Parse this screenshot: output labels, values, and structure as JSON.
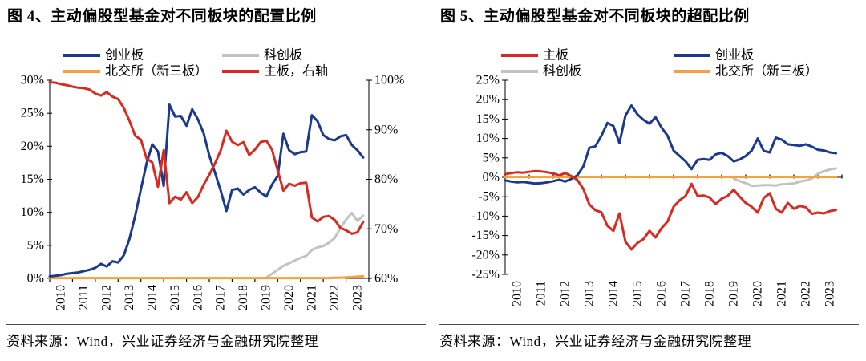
{
  "page": {
    "background": "#ffffff",
    "rule_color": "#4a4a4a"
  },
  "colors": {
    "main_board_red": "#da2a20",
    "chinext_blue": "#1b3a8e",
    "star_gray": "#c2c2c2",
    "bse_orange": "#f9a03a"
  },
  "panels": [
    {
      "title": "图 4、主动偏股型基金对不同板块的配置比例",
      "source": "资料来源：Wind，兴业证券经济与金融研究院整理"
    },
    {
      "title": "图 5、主动偏股型基金对不同板块的超配比例",
      "source": "资料来源：Wind，兴业证券经济与金融研究院整理"
    }
  ],
  "chart_data": [
    {
      "type": "line",
      "title": "主动偏股型基金对不同板块的配置比例",
      "x_tick_labels": [
        "2010",
        "2011",
        "2012",
        "2013",
        "2014",
        "2015",
        "2016",
        "2017",
        "2018",
        "2019",
        "2020",
        "2021",
        "2022",
        "2023"
      ],
      "points_per_year": 4,
      "left_axis": {
        "min": 0,
        "max": 30,
        "step": 5,
        "tick_labels": [
          "0%",
          "5%",
          "10%",
          "15%",
          "20%",
          "25%",
          "30%"
        ]
      },
      "right_axis": {
        "min": 60,
        "max": 100,
        "step": 10,
        "tick_labels": [
          "60%",
          "70%",
          "80%",
          "90%",
          "100%"
        ]
      },
      "legend_position": "top-two-columns",
      "grid": false,
      "series": [
        {
          "name": "创业板",
          "color": "#1b3a8e",
          "axis": "left",
          "z": 2,
          "values": [
            0.3,
            0.4,
            0.5,
            0.7,
            0.8,
            0.9,
            1.1,
            1.3,
            1.6,
            2.2,
            1.8,
            2.6,
            2.4,
            3.5,
            6.0,
            9.5,
            13.5,
            17.4,
            20.3,
            19.2,
            14.0,
            26.3,
            24.5,
            24.6,
            23.1,
            25.6,
            24.1,
            22.0,
            18.6,
            16.0,
            13.3,
            10.2,
            13.4,
            13.6,
            12.7,
            13.4,
            13.8,
            13.0,
            12.4,
            14.2,
            15.5,
            21.9,
            19.4,
            18.8,
            19.1,
            19.2,
            24.7,
            23.8,
            21.7,
            21.1,
            20.9,
            21.5,
            21.7,
            20.2,
            19.4,
            18.3
          ]
        },
        {
          "name": "科创板",
          "color": "#c2c2c2",
          "axis": "left",
          "z": 0,
          "values": [
            null,
            null,
            null,
            null,
            null,
            null,
            null,
            null,
            null,
            null,
            null,
            null,
            null,
            null,
            null,
            null,
            null,
            null,
            null,
            null,
            null,
            null,
            null,
            null,
            null,
            null,
            null,
            null,
            null,
            null,
            null,
            null,
            null,
            null,
            null,
            null,
            null,
            null,
            0.1,
            0.7,
            1.3,
            1.9,
            2.3,
            2.7,
            3.1,
            3.4,
            4.3,
            4.7,
            4.9,
            5.4,
            6.1,
            7.6,
            8.9,
            9.9,
            8.7,
            9.5
          ]
        },
        {
          "name": "北交所（新三板）",
          "color": "#f9a03a",
          "axis": "left",
          "z": 1,
          "values": [
            0.05,
            0.05,
            0.05,
            0.05,
            0.05,
            0.05,
            0.05,
            0.05,
            0.05,
            0.05,
            0.05,
            0.05,
            0.05,
            0.05,
            0.05,
            0.05,
            0.05,
            0.05,
            0.05,
            0.05,
            0.05,
            0.05,
            0.05,
            0.05,
            0.05,
            0.05,
            0.05,
            0.05,
            0.05,
            0.05,
            0.05,
            0.05,
            0.05,
            0.05,
            0.05,
            0.05,
            0.05,
            0.05,
            0.05,
            0.05,
            0.05,
            0.05,
            0.05,
            0.05,
            0.05,
            0.05,
            0.05,
            0.05,
            0.05,
            0.05,
            0.1,
            0.1,
            0.15,
            0.2,
            0.25,
            0.3
          ]
        },
        {
          "name": "主板，右轴",
          "color": "#da2a20",
          "axis": "right",
          "z": 3,
          "values": [
            99.6,
            99.5,
            99.2,
            99.0,
            98.7,
            98.5,
            98.4,
            98.1,
            97.3,
            96.9,
            97.6,
            96.7,
            96.2,
            94.4,
            91.8,
            88.8,
            88.0,
            84.2,
            83.4,
            78.5,
            85.9,
            75.2,
            76.5,
            75.9,
            77.4,
            75.2,
            76.4,
            78.9,
            80.9,
            83.2,
            85.8,
            89.8,
            87.6,
            86.9,
            87.5,
            84.9,
            86.0,
            87.5,
            87.8,
            86.0,
            81.8,
            77.7,
            79.1,
            78.7,
            79.2,
            79.3,
            72.3,
            71.5,
            72.4,
            72.6,
            71.8,
            70.2,
            69.7,
            69.0,
            69.3,
            71.4
          ]
        }
      ]
    },
    {
      "type": "line",
      "title": "主动偏股型基金对不同板块的超配比例",
      "x_tick_labels": [
        "2010",
        "2011",
        "2012",
        "2013",
        "2014",
        "2015",
        "2016",
        "2017",
        "2018",
        "2019",
        "2020",
        "2021",
        "2022",
        "2023"
      ],
      "points_per_year": 4,
      "left_axis": {
        "min": -25,
        "max": 25,
        "step": 5,
        "tick_labels": [
          "-25%",
          "-20%",
          "-15%",
          "-10%",
          "-5%",
          "0%",
          "5%",
          "10%",
          "15%",
          "20%",
          "25%"
        ]
      },
      "legend_position": "top-two-columns",
      "grid": false,
      "series": [
        {
          "name": "主板",
          "color": "#da2a20",
          "axis": "left",
          "z": 3,
          "values": [
            0.8,
            1.1,
            1.3,
            1.2,
            1.4,
            1.6,
            1.5,
            1.3,
            1.0,
            0.5,
            1.1,
            0.3,
            -0.7,
            -3.0,
            -7.0,
            -8.5,
            -9.0,
            -12.5,
            -13.8,
            -9.3,
            -16.6,
            -18.6,
            -16.9,
            -15.9,
            -13.8,
            -15.5,
            -13.1,
            -11.4,
            -7.6,
            -5.9,
            -4.8,
            -1.7,
            -4.8,
            -4.7,
            -5.2,
            -6.9,
            -5.5,
            -4.8,
            -3.2,
            -5.0,
            -6.6,
            -7.6,
            -9.1,
            -5.3,
            -4.1,
            -8.1,
            -9.1,
            -6.6,
            -8.1,
            -7.4,
            -7.7,
            -9.4,
            -9.1,
            -9.3,
            -8.7,
            -8.4
          ]
        },
        {
          "name": "创业板",
          "color": "#1b3a8e",
          "axis": "left",
          "z": 2,
          "values": [
            -0.8,
            -1.1,
            -1.3,
            -1.2,
            -1.4,
            -1.6,
            -1.5,
            -1.3,
            -1.0,
            -0.6,
            -1.1,
            -0.4,
            0.5,
            2.8,
            7.6,
            8.0,
            10.7,
            14.0,
            13.2,
            8.8,
            15.9,
            18.5,
            16.2,
            14.8,
            13.8,
            15.5,
            12.8,
            10.7,
            6.9,
            5.5,
            4.1,
            2.1,
            4.5,
            4.7,
            4.5,
            5.9,
            6.3,
            5.5,
            4.1,
            4.6,
            5.5,
            6.9,
            10.0,
            6.8,
            6.4,
            10.2,
            9.7,
            8.5,
            8.3,
            8.1,
            8.5,
            7.9,
            7.1,
            6.9,
            6.4,
            6.2
          ]
        },
        {
          "name": "科创板",
          "color": "#c2c2c2",
          "axis": "left",
          "z": 0,
          "values": [
            null,
            null,
            null,
            null,
            null,
            null,
            null,
            null,
            null,
            null,
            null,
            null,
            null,
            null,
            null,
            null,
            null,
            null,
            null,
            null,
            null,
            null,
            null,
            null,
            null,
            null,
            null,
            null,
            null,
            null,
            null,
            null,
            null,
            null,
            null,
            null,
            null,
            null,
            -0.3,
            -1.0,
            -1.5,
            -2.2,
            -2.1,
            -2.0,
            -2.0,
            -2.1,
            -1.8,
            -1.7,
            -1.6,
            -1.1,
            -0.8,
            -0.3,
            0.9,
            1.6,
            2.0,
            2.3
          ]
        },
        {
          "name": "北交所（新三板）",
          "color": "#f9a03a",
          "axis": "left",
          "z": 1,
          "values": [
            0.1,
            0.1,
            0.1,
            0.1,
            0.1,
            0.1,
            0.1,
            0.1,
            0.1,
            0.1,
            0.1,
            0.1,
            0.1,
            0.1,
            0.1,
            0.1,
            0.1,
            0.1,
            0.1,
            0.1,
            0.1,
            0.1,
            0.1,
            0.1,
            0.1,
            0.1,
            0.1,
            0.1,
            0.1,
            0.1,
            0.1,
            0.1,
            0.1,
            0.1,
            0.1,
            0.1,
            0.1,
            0.1,
            0.1,
            0.1,
            0.1,
            0.1,
            0.1,
            0.1,
            0.1,
            0.1,
            0.1,
            0.1,
            0.1,
            0.1,
            0.1,
            0.1,
            0.1,
            0.1,
            0.1,
            0.1
          ]
        }
      ]
    }
  ]
}
